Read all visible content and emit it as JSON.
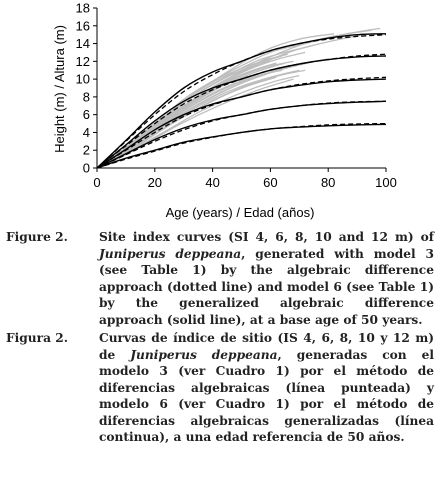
{
  "chart_data": {
    "type": "line",
    "xlabel": "Age (years) / Edad (años)",
    "ylabel": "Height (m) / Altura (m)",
    "xlim": [
      0,
      100
    ],
    "ylim": [
      0,
      18
    ],
    "xticks": [
      0,
      20,
      40,
      60,
      80,
      100
    ],
    "yticks": [
      0,
      2,
      4,
      6,
      8,
      10,
      12,
      14,
      16,
      18
    ],
    "grid": false,
    "site_index_curves": [
      {
        "si": 4,
        "solid": [
          [
            0,
            0
          ],
          [
            10,
            1.1
          ],
          [
            20,
            2.0
          ],
          [
            30,
            2.9
          ],
          [
            40,
            3.5
          ],
          [
            50,
            4.0
          ],
          [
            60,
            4.4
          ],
          [
            70,
            4.6
          ],
          [
            80,
            4.75
          ],
          [
            90,
            4.85
          ],
          [
            100,
            4.9
          ]
        ],
        "dotted": [
          [
            0,
            0
          ],
          [
            10,
            1.0
          ],
          [
            20,
            1.9
          ],
          [
            30,
            2.8
          ],
          [
            40,
            3.45
          ],
          [
            50,
            4.0
          ],
          [
            60,
            4.4
          ],
          [
            70,
            4.65
          ],
          [
            80,
            4.85
          ],
          [
            90,
            4.95
          ],
          [
            100,
            5.0
          ]
        ]
      },
      {
        "si": 6,
        "solid": [
          [
            0,
            0
          ],
          [
            10,
            1.6
          ],
          [
            20,
            3.2
          ],
          [
            30,
            4.5
          ],
          [
            40,
            5.4
          ],
          [
            50,
            6.0
          ],
          [
            60,
            6.6
          ],
          [
            70,
            7.0
          ],
          [
            80,
            7.25
          ],
          [
            90,
            7.4
          ],
          [
            100,
            7.5
          ]
        ],
        "dotted": [
          [
            0,
            0
          ],
          [
            10,
            1.5
          ],
          [
            20,
            3.0
          ],
          [
            30,
            4.3
          ],
          [
            40,
            5.3
          ],
          [
            50,
            6.0
          ],
          [
            60,
            6.6
          ],
          [
            70,
            7.0
          ],
          [
            80,
            7.3
          ],
          [
            90,
            7.45
          ],
          [
            100,
            7.5
          ]
        ]
      },
      {
        "si": 8,
        "solid": [
          [
            0,
            0
          ],
          [
            10,
            2.1
          ],
          [
            20,
            4.3
          ],
          [
            30,
            6.0
          ],
          [
            40,
            7.2
          ],
          [
            50,
            8.0
          ],
          [
            60,
            8.8
          ],
          [
            70,
            9.3
          ],
          [
            80,
            9.7
          ],
          [
            90,
            9.9
          ],
          [
            100,
            10.0
          ]
        ],
        "dotted": [
          [
            0,
            0
          ],
          [
            10,
            2.0
          ],
          [
            20,
            4.0
          ],
          [
            30,
            5.8
          ],
          [
            40,
            7.1
          ],
          [
            50,
            8.0
          ],
          [
            60,
            8.8
          ],
          [
            70,
            9.4
          ],
          [
            80,
            9.8
          ],
          [
            90,
            10.05
          ],
          [
            100,
            10.2
          ]
        ]
      },
      {
        "si": 10,
        "solid": [
          [
            0,
            0
          ],
          [
            10,
            2.6
          ],
          [
            20,
            5.3
          ],
          [
            30,
            7.5
          ],
          [
            40,
            9.0
          ],
          [
            50,
            10.0
          ],
          [
            60,
            11.0
          ],
          [
            70,
            11.7
          ],
          [
            80,
            12.2
          ],
          [
            90,
            12.5
          ],
          [
            100,
            12.6
          ]
        ],
        "dotted": [
          [
            0,
            0
          ],
          [
            10,
            2.5
          ],
          [
            20,
            5.0
          ],
          [
            30,
            7.2
          ],
          [
            40,
            8.8
          ],
          [
            50,
            10.0
          ],
          [
            60,
            11.0
          ],
          [
            70,
            11.7
          ],
          [
            80,
            12.2
          ],
          [
            90,
            12.6
          ],
          [
            100,
            12.8
          ]
        ]
      },
      {
        "si": 12,
        "solid": [
          [
            0,
            0
          ],
          [
            10,
            3.1
          ],
          [
            20,
            6.3
          ],
          [
            30,
            9.0
          ],
          [
            40,
            10.8
          ],
          [
            50,
            12.0
          ],
          [
            60,
            13.2
          ],
          [
            70,
            14.0
          ],
          [
            80,
            14.6
          ],
          [
            90,
            15.0
          ],
          [
            100,
            15.1
          ]
        ],
        "dotted": [
          [
            0,
            0
          ],
          [
            10,
            3.0
          ],
          [
            20,
            6.0
          ],
          [
            30,
            8.6
          ],
          [
            40,
            10.5
          ],
          [
            50,
            12.0
          ],
          [
            60,
            13.2
          ],
          [
            70,
            14.0
          ],
          [
            80,
            14.5
          ],
          [
            90,
            14.8
          ],
          [
            100,
            15.0
          ]
        ]
      }
    ],
    "observed_profiles": [
      [
        [
          2,
          0.3
        ],
        [
          15,
          3.5
        ],
        [
          30,
          7.0
        ],
        [
          45,
          10.0
        ],
        [
          60,
          12.5
        ],
        [
          75,
          14.3
        ],
        [
          90,
          15.3
        ],
        [
          98,
          15.7
        ]
      ],
      [
        [
          3,
          0.4
        ],
        [
          18,
          4.5
        ],
        [
          32,
          8.2
        ],
        [
          47,
          11.0
        ],
        [
          60,
          13.0
        ],
        [
          72,
          14.0
        ],
        [
          85,
          15.0
        ],
        [
          95,
          15.5
        ]
      ],
      [
        [
          2,
          0.2
        ],
        [
          14,
          3.2
        ],
        [
          28,
          6.5
        ],
        [
          42,
          9.5
        ],
        [
          55,
          11.5
        ],
        [
          68,
          13.2
        ],
        [
          80,
          14.2
        ],
        [
          92,
          15.0
        ]
      ],
      [
        [
          4,
          0.5
        ],
        [
          16,
          3.8
        ],
        [
          30,
          7.5
        ],
        [
          44,
          10.6
        ],
        [
          58,
          13.2
        ],
        [
          70,
          14.5
        ],
        [
          82,
          15.1
        ]
      ],
      [
        [
          3,
          0.3
        ],
        [
          15,
          3.0
        ],
        [
          28,
          6.8
        ],
        [
          42,
          9.8
        ],
        [
          55,
          12.0
        ],
        [
          65,
          13.0
        ],
        [
          75,
          13.8
        ]
      ],
      [
        [
          2,
          0.3
        ],
        [
          12,
          2.5
        ],
        [
          26,
          6.0
        ],
        [
          40,
          9.0
        ],
        [
          52,
          11.0
        ],
        [
          62,
          12.2
        ],
        [
          72,
          13.0
        ]
      ],
      [
        [
          5,
          0.8
        ],
        [
          18,
          4.2
        ],
        [
          32,
          8.0
        ],
        [
          45,
          10.5
        ],
        [
          57,
          12.0
        ],
        [
          66,
          12.8
        ]
      ],
      [
        [
          3,
          0.4
        ],
        [
          15,
          3.0
        ],
        [
          30,
          6.2
        ],
        [
          45,
          8.8
        ],
        [
          58,
          10.5
        ],
        [
          70,
          11.6
        ],
        [
          80,
          12.3
        ]
      ],
      [
        [
          4,
          0.6
        ],
        [
          16,
          3.4
        ],
        [
          30,
          6.8
        ],
        [
          43,
          9.2
        ],
        [
          55,
          10.8
        ],
        [
          65,
          11.8
        ]
      ],
      [
        [
          6,
          1.0
        ],
        [
          20,
          4.5
        ],
        [
          33,
          7.5
        ],
        [
          46,
          9.8
        ],
        [
          58,
          11.3
        ],
        [
          68,
          12.0
        ]
      ],
      [
        [
          3,
          0.4
        ],
        [
          16,
          3.0
        ],
        [
          30,
          5.8
        ],
        [
          44,
          8.2
        ],
        [
          56,
          9.8
        ],
        [
          66,
          10.7
        ]
      ],
      [
        [
          5,
          0.6
        ],
        [
          18,
          3.6
        ],
        [
          32,
          6.6
        ],
        [
          46,
          9.0
        ],
        [
          60,
          10.8
        ],
        [
          72,
          11.8
        ]
      ],
      [
        [
          8,
          1.5
        ],
        [
          20,
          4.8
        ],
        [
          32,
          7.8
        ],
        [
          42,
          9.8
        ],
        [
          52,
          11.2
        ],
        [
          60,
          12.0
        ]
      ],
      [
        [
          4,
          0.5
        ],
        [
          14,
          2.5
        ],
        [
          26,
          5.0
        ],
        [
          38,
          7.2
        ],
        [
          50,
          9.0
        ],
        [
          62,
          10.3
        ],
        [
          72,
          11.0
        ]
      ],
      [
        [
          6,
          0.9
        ],
        [
          18,
          3.6
        ],
        [
          30,
          6.4
        ],
        [
          42,
          8.6
        ],
        [
          54,
          10.2
        ],
        [
          64,
          11.0
        ]
      ],
      [
        [
          10,
          2.0
        ],
        [
          22,
          5.2
        ],
        [
          34,
          8.2
        ],
        [
          46,
          10.4
        ],
        [
          56,
          11.8
        ],
        [
          64,
          12.6
        ]
      ],
      [
        [
          2,
          0.2
        ],
        [
          14,
          2.2
        ],
        [
          28,
          4.8
        ],
        [
          42,
          7.0
        ],
        [
          56,
          8.8
        ],
        [
          68,
          10.0
        ]
      ],
      [
        [
          5,
          0.8
        ],
        [
          16,
          3.2
        ],
        [
          28,
          6.0
        ],
        [
          40,
          8.4
        ],
        [
          50,
          9.8
        ],
        [
          58,
          10.6
        ]
      ],
      [
        [
          7,
          1.1
        ],
        [
          20,
          4.2
        ],
        [
          32,
          7.2
        ],
        [
          44,
          9.6
        ],
        [
          54,
          11.0
        ],
        [
          62,
          11.8
        ]
      ],
      [
        [
          3,
          0.5
        ],
        [
          16,
          3.4
        ],
        [
          30,
          6.6
        ],
        [
          42,
          9.0
        ],
        [
          52,
          10.4
        ]
      ],
      [
        [
          20,
          3.8
        ],
        [
          30,
          6.0
        ],
        [
          40,
          7.8
        ],
        [
          50,
          9.2
        ],
        [
          60,
          10.2
        ],
        [
          70,
          11.0
        ]
      ],
      [
        [
          25,
          5.8
        ],
        [
          35,
          8.0
        ],
        [
          45,
          9.8
        ],
        [
          55,
          11.0
        ],
        [
          62,
          11.8
        ]
      ],
      [
        [
          2,
          0.3
        ],
        [
          12,
          2.0
        ],
        [
          24,
          4.2
        ],
        [
          36,
          6.4
        ],
        [
          48,
          8.2
        ],
        [
          60,
          9.6
        ],
        [
          70,
          10.4
        ]
      ],
      [
        [
          4,
          0.6
        ],
        [
          15,
          2.8
        ],
        [
          28,
          5.4
        ],
        [
          40,
          7.6
        ],
        [
          52,
          9.2
        ],
        [
          62,
          10.2
        ]
      ]
    ]
  },
  "captions": [
    {
      "label": "Figure 2.",
      "pre": "Site index curves (SI 4, 6, 8, 10 and 12 m) of ",
      "species": "Juniperus deppeana",
      "post": ", generated with model 3 (see Table 1) by the algebraic difference approach (dotted line) and model 6 (see Table 1) by the generalized algebraic difference approach (solid line), at a base age of 50 years."
    },
    {
      "label": "Figura 2.",
      "pre": "Curvas de índice de sitio (IS 4, 6, 8, 10 y 12 m) de ",
      "species": "Juniperus deppeana",
      "post": ", generadas con el modelo 3 (ver Cuadro 1) por el método de diferencias algebraicas (línea punteada) y modelo 6 (ver Cuadro 1) por el método de diferencias algebraicas generalizadas (línea continua), a una edad referencia de 50 años."
    }
  ]
}
